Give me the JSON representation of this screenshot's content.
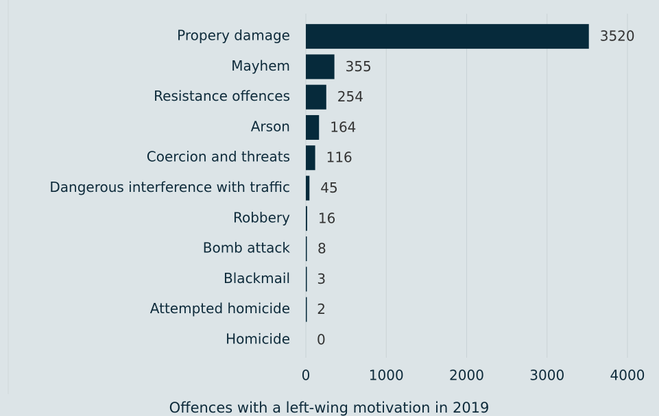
{
  "chart_data": {
    "type": "bar",
    "orientation": "horizontal",
    "xlabel": "Offences with a left-wing motivation in 2019",
    "categories": [
      "Propery damage",
      "Mayhem",
      "Resistance offences",
      "Arson",
      "Coercion and threats",
      "Dangerous interference with traffic",
      "Robbery",
      "Bomb attack",
      "Blackmail",
      "Attempted homicide",
      "Homicide"
    ],
    "values": [
      3520,
      355,
      254,
      164,
      116,
      45,
      16,
      8,
      3,
      2,
      0
    ],
    "color": "#062a3b",
    "xlim": [
      0,
      4000
    ],
    "xticks": [
      0,
      1000,
      2000,
      3000,
      4000
    ],
    "grid": true,
    "data_labels": true
  }
}
